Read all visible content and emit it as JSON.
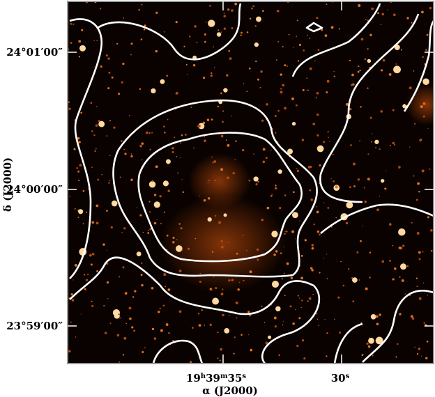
{
  "figure": {
    "y_axis": {
      "label": "δ (J2000)",
      "ticks": [
        "24°01′00″",
        "24°00′00″",
        "23°59′00″"
      ]
    },
    "x_axis": {
      "label": "α (J2000)",
      "ticks": [
        [
          "19",
          "h",
          "39",
          "m",
          "35",
          "s"
        ],
        [
          "30",
          "s"
        ]
      ]
    }
  }
}
